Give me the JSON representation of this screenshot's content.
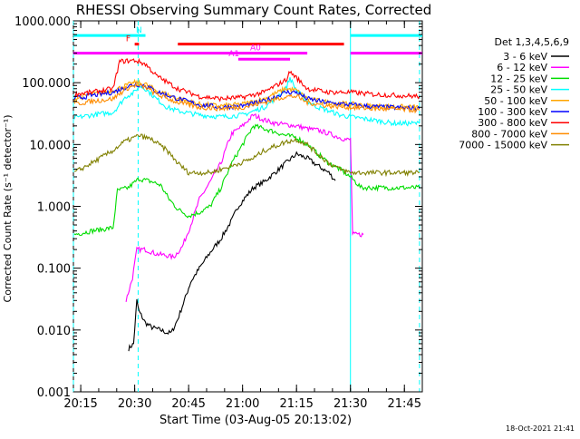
{
  "chart_data": {
    "type": "line",
    "title": "RHESSI Observing Summary Count Rates, Corrected",
    "xlabel": "Start Time (03-Aug-05 20:13:02)",
    "ylabel": "Corrected Count Rate (s⁻¹ detector⁻¹)",
    "yscale": "log",
    "ylim": [
      0.001,
      1000
    ],
    "xlim_minutes": [
      20.216,
      21.833
    ],
    "x_ticks": [
      {
        "label": "20:15",
        "t": 20.25
      },
      {
        "label": "20:30",
        "t": 20.5
      },
      {
        "label": "20:45",
        "t": 20.75
      },
      {
        "label": "21:00",
        "t": 21.0
      },
      {
        "label": "21:15",
        "t": 21.25
      },
      {
        "label": "21:30",
        "t": 21.5
      },
      {
        "label": "21:45",
        "t": 21.75
      }
    ],
    "y_ticks": [
      {
        "label": "1000.000",
        "v": 1000
      },
      {
        "label": "100.000",
        "v": 100
      },
      {
        "label": "10.000",
        "v": 10
      },
      {
        "label": "1.000",
        "v": 1
      },
      {
        "label": "0.100",
        "v": 0.1
      },
      {
        "label": "0.010",
        "v": 0.01
      },
      {
        "label": "0.001",
        "v": 0.001
      }
    ],
    "legend_title": "Det 1,3,4,5,6,9",
    "legend_position": "right",
    "series": [
      {
        "name": "3 - 6 keV",
        "color": "#000000",
        "data": [
          [
            20.472,
            0.005
          ],
          [
            20.495,
            0.006
          ],
          [
            20.51,
            0.03
          ],
          [
            20.52,
            0.02
          ],
          [
            20.55,
            0.013
          ],
          [
            20.58,
            0.011
          ],
          [
            20.62,
            0.01
          ],
          [
            20.65,
            0.009
          ],
          [
            20.67,
            0.009
          ],
          [
            20.7,
            0.015
          ],
          [
            20.73,
            0.03
          ],
          [
            20.76,
            0.06
          ],
          [
            20.8,
            0.1
          ],
          [
            20.85,
            0.18
          ],
          [
            20.9,
            0.3
          ],
          [
            20.95,
            0.6
          ],
          [
            20.98,
            1.0
          ],
          [
            21.02,
            1.5
          ],
          [
            21.05,
            2.0
          ],
          [
            21.1,
            2.5
          ],
          [
            21.15,
            3.5
          ],
          [
            21.2,
            5.0
          ],
          [
            21.25,
            7.0
          ],
          [
            21.3,
            6.0
          ],
          [
            21.35,
            4.5
          ],
          [
            21.4,
            3.5
          ],
          [
            21.43,
            2.6
          ]
        ]
      },
      {
        "name": "6 - 12 keV",
        "color": "#ff00ff",
        "data": [
          [
            20.46,
            0.03
          ],
          [
            20.49,
            0.07
          ],
          [
            20.51,
            0.2
          ],
          [
            20.55,
            0.2
          ],
          [
            20.6,
            0.17
          ],
          [
            20.65,
            0.16
          ],
          [
            20.68,
            0.15
          ],
          [
            20.72,
            0.22
          ],
          [
            20.76,
            0.5
          ],
          [
            20.8,
            1.3
          ],
          [
            20.85,
            2.5
          ],
          [
            20.9,
            5.0
          ],
          [
            20.93,
            10.0
          ],
          [
            20.95,
            15
          ],
          [
            21.0,
            20
          ],
          [
            21.05,
            30
          ],
          [
            21.1,
            25
          ],
          [
            21.15,
            22
          ],
          [
            21.2,
            21
          ],
          [
            21.25,
            20
          ],
          [
            21.3,
            18
          ],
          [
            21.35,
            17
          ],
          [
            21.4,
            15
          ],
          [
            21.45,
            13
          ],
          [
            21.48,
            12
          ],
          [
            21.5,
            12
          ],
          [
            21.51,
            0.35
          ],
          [
            21.53,
            0.35
          ],
          [
            21.56,
            0.35
          ]
        ]
      },
      {
        "name": "12 - 25 keV",
        "color": "#00dd00",
        "data": [
          [
            20.22,
            0.35
          ],
          [
            20.3,
            0.4
          ],
          [
            20.4,
            0.45
          ],
          [
            20.42,
            1.8
          ],
          [
            20.47,
            2.0
          ],
          [
            20.52,
            2.8
          ],
          [
            20.58,
            2.5
          ],
          [
            20.62,
            2.2
          ],
          [
            20.66,
            1.3
          ],
          [
            20.7,
            0.9
          ],
          [
            20.75,
            0.7
          ],
          [
            20.8,
            0.8
          ],
          [
            20.85,
            1.0
          ],
          [
            20.9,
            2.0
          ],
          [
            20.95,
            5.0
          ],
          [
            21.0,
            10
          ],
          [
            21.05,
            20
          ],
          [
            21.1,
            18
          ],
          [
            21.15,
            16
          ],
          [
            21.2,
            14
          ],
          [
            21.25,
            13
          ],
          [
            21.3,
            10
          ],
          [
            21.35,
            7
          ],
          [
            21.4,
            5
          ],
          [
            21.45,
            4
          ],
          [
            21.5,
            3
          ],
          [
            21.55,
            2.0
          ],
          [
            21.65,
            2.0
          ],
          [
            21.75,
            2.0
          ],
          [
            21.82,
            2.0
          ]
        ]
      },
      {
        "name": "25 - 50 keV",
        "color": "#00ffff",
        "data": [
          [
            20.22,
            27
          ],
          [
            20.3,
            30
          ],
          [
            20.4,
            33
          ],
          [
            20.46,
            60
          ],
          [
            20.5,
            70
          ],
          [
            20.52,
            90
          ],
          [
            20.55,
            80
          ],
          [
            20.6,
            55
          ],
          [
            20.65,
            40
          ],
          [
            20.7,
            35
          ],
          [
            20.8,
            30
          ],
          [
            20.9,
            28
          ],
          [
            21.0,
            30
          ],
          [
            21.1,
            40
          ],
          [
            21.15,
            55
          ],
          [
            21.2,
            80
          ],
          [
            21.22,
            120
          ],
          [
            21.25,
            75
          ],
          [
            21.3,
            50
          ],
          [
            21.35,
            40
          ],
          [
            21.4,
            35
          ],
          [
            21.45,
            30
          ],
          [
            21.5,
            28
          ],
          [
            21.6,
            25
          ],
          [
            21.7,
            22
          ],
          [
            21.82,
            22
          ]
        ]
      },
      {
        "name": "50 - 100 keV",
        "color": "#ffa500",
        "data": [
          [
            20.22,
            55
          ],
          [
            20.3,
            65
          ],
          [
            20.4,
            75
          ],
          [
            20.46,
            90
          ],
          [
            20.5,
            100
          ],
          [
            20.55,
            95
          ],
          [
            20.6,
            75
          ],
          [
            20.7,
            55
          ],
          [
            20.8,
            45
          ],
          [
            20.9,
            42
          ],
          [
            21.0,
            45
          ],
          [
            21.1,
            55
          ],
          [
            21.2,
            80
          ],
          [
            21.25,
            75
          ],
          [
            21.3,
            55
          ],
          [
            21.4,
            48
          ],
          [
            21.5,
            45
          ],
          [
            21.6,
            42
          ],
          [
            21.82,
            40
          ]
        ]
      },
      {
        "name": "100 - 300 keV",
        "color": "#0000ff",
        "data": [
          [
            20.22,
            55
          ],
          [
            20.3,
            62
          ],
          [
            20.4,
            70
          ],
          [
            20.46,
            85
          ],
          [
            20.5,
            95
          ],
          [
            20.55,
            90
          ],
          [
            20.6,
            72
          ],
          [
            20.7,
            55
          ],
          [
            20.8,
            44
          ],
          [
            20.9,
            40
          ],
          [
            21.0,
            42
          ],
          [
            21.1,
            50
          ],
          [
            21.2,
            70
          ],
          [
            21.25,
            70
          ],
          [
            21.3,
            55
          ],
          [
            21.4,
            47
          ],
          [
            21.5,
            44
          ],
          [
            21.6,
            41
          ],
          [
            21.82,
            38
          ]
        ]
      },
      {
        "name": "300 - 800 keV",
        "color": "#ff0000",
        "data": [
          [
            20.22,
            65
          ],
          [
            20.3,
            70
          ],
          [
            20.4,
            80
          ],
          [
            20.43,
            220
          ],
          [
            20.5,
            230
          ],
          [
            20.55,
            200
          ],
          [
            20.6,
            130
          ],
          [
            20.7,
            80
          ],
          [
            20.8,
            60
          ],
          [
            20.9,
            55
          ],
          [
            21.0,
            58
          ],
          [
            21.1,
            70
          ],
          [
            21.2,
            110
          ],
          [
            21.22,
            150
          ],
          [
            21.25,
            120
          ],
          [
            21.3,
            80
          ],
          [
            21.4,
            70
          ],
          [
            21.5,
            70
          ],
          [
            21.6,
            65
          ],
          [
            21.82,
            60
          ]
        ]
      },
      {
        "name": "800 - 7000 keV",
        "color": "#ff8c00",
        "data": [
          [
            20.22,
            45
          ],
          [
            20.3,
            50
          ],
          [
            20.4,
            55
          ],
          [
            20.46,
            80
          ],
          [
            20.5,
            90
          ],
          [
            20.55,
            85
          ],
          [
            20.6,
            65
          ],
          [
            20.7,
            48
          ],
          [
            20.8,
            40
          ],
          [
            20.9,
            38
          ],
          [
            21.0,
            40
          ],
          [
            21.1,
            48
          ],
          [
            21.2,
            60
          ],
          [
            21.25,
            60
          ],
          [
            21.3,
            48
          ],
          [
            21.4,
            42
          ],
          [
            21.5,
            40
          ],
          [
            21.6,
            38
          ],
          [
            21.82,
            36
          ]
        ]
      },
      {
        "name": "7000 - 15000 keV",
        "color": "#808000",
        "data": [
          [
            20.22,
            3.5
          ],
          [
            20.3,
            5.0
          ],
          [
            20.4,
            8.0
          ],
          [
            20.45,
            11
          ],
          [
            20.52,
            14
          ],
          [
            20.58,
            12
          ],
          [
            20.65,
            8
          ],
          [
            20.7,
            5
          ],
          [
            20.75,
            3.5
          ],
          [
            20.85,
            3.5
          ],
          [
            20.95,
            4.5
          ],
          [
            21.05,
            6
          ],
          [
            21.1,
            8
          ],
          [
            21.2,
            11
          ],
          [
            21.25,
            12
          ],
          [
            21.3,
            10
          ],
          [
            21.35,
            7
          ],
          [
            21.4,
            5
          ],
          [
            21.45,
            4
          ],
          [
            21.5,
            3.5
          ],
          [
            21.6,
            3.5
          ],
          [
            21.7,
            3.5
          ],
          [
            21.82,
            3.5
          ]
        ]
      }
    ],
    "annotations": [
      {
        "text": "N",
        "color": "#00ffff",
        "t": 20.52,
        "bars": [
          [
            20.215,
            20.55
          ],
          [
            21.5,
            21.833
          ]
        ],
        "v": 580
      },
      {
        "text": "F",
        "color": "#ff0000",
        "t": 20.47,
        "bars": [
          [
            20.5,
            20.52
          ],
          [
            20.7,
            21.47
          ]
        ],
        "v": 420
      },
      {
        "text": "A0",
        "color": "#ff00ff",
        "t": 21.06,
        "bars": [
          [
            20.215,
            21.3
          ],
          [
            21.5,
            21.833
          ]
        ],
        "v": 300
      },
      {
        "text": "A1",
        "color": "#ff00ff",
        "t": 20.96,
        "bars": [
          [
            20.98,
            21.22
          ]
        ],
        "v": 240
      }
    ],
    "vlines": [
      {
        "t": 20.216,
        "color": "#00ffff",
        "style": "dashed"
      },
      {
        "t": 20.516,
        "color": "#00ffff",
        "style": "dashed"
      },
      {
        "t": 21.5,
        "color": "#00ffff",
        "style": "solid"
      },
      {
        "t": 21.82,
        "color": "#00ffff",
        "style": "dashed"
      }
    ]
  },
  "footer": {
    "timestamp": "18-Oct-2021 21:41"
  }
}
